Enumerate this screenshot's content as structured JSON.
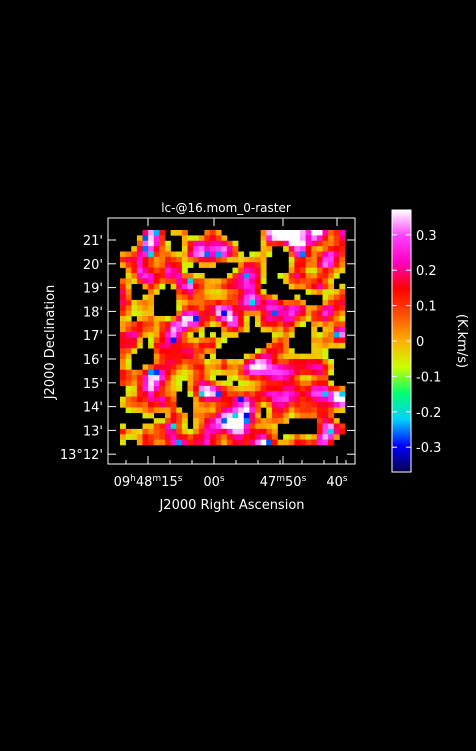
{
  "chart_data": {
    "type": "heatmap",
    "title": "lc-@16.mom_0-raster",
    "xlabel": "J2000 Right Ascension",
    "ylabel": "J2000 Declination",
    "colorbar_label": "(K.km/s)",
    "x_ticks": [
      {
        "label": "09h48m15s",
        "parts": [
          [
            "09",
            "n"
          ],
          [
            "h",
            "s"
          ],
          [
            "48",
            "n"
          ],
          [
            "m",
            "s"
          ],
          [
            "15",
            "n"
          ],
          [
            "s",
            "s"
          ]
        ]
      },
      {
        "label": "00s",
        "parts": [
          [
            "00",
            "n"
          ],
          [
            "s",
            "s"
          ]
        ]
      },
      {
        "label": "47m50s",
        "parts": [
          [
            "47",
            "n"
          ],
          [
            "m",
            "s"
          ],
          [
            "50",
            "n"
          ],
          [
            "s",
            "s"
          ]
        ]
      },
      {
        "label": "40s",
        "parts": [
          [
            "40",
            "n"
          ],
          [
            "s",
            "s"
          ]
        ]
      }
    ],
    "y_ticks": [
      "13°12'",
      "13'",
      "14'",
      "15'",
      "16'",
      "17'",
      "18'",
      "19'",
      "20'",
      "21'"
    ],
    "colorbar_ticks": [
      "0.3",
      "0.2",
      "0.1",
      "0",
      "-0.1",
      "-0.2",
      "-0.3"
    ],
    "colorbar_tick_values": [
      0.3,
      0.2,
      0.1,
      0,
      -0.1,
      -0.2,
      -0.3
    ],
    "value_range": [
      -0.37,
      0.37
    ],
    "colormap_stops": [
      "#08004a",
      "#0000ff",
      "#00d0ff",
      "#00ff70",
      "#c8ff00",
      "#ffb000",
      "#ff5000",
      "#ff0000",
      "#ff00c0",
      "#ff40ff",
      "#ffffff"
    ],
    "grid_size": [
      40,
      40
    ],
    "seed": 17
  }
}
